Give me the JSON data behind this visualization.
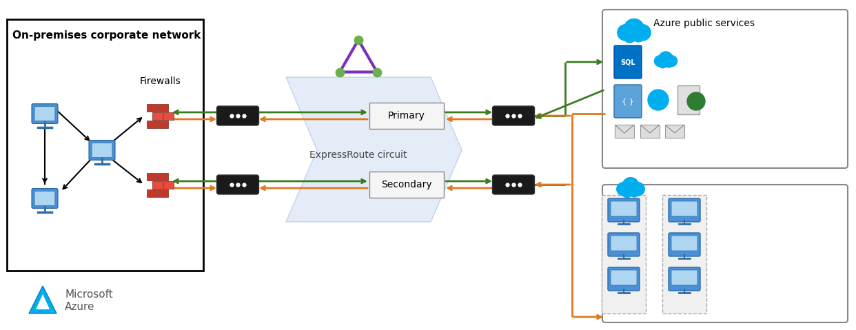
{
  "title": "On-premises corporate network",
  "bg_color": "#ffffff",
  "box_color": "#000000",
  "green_color": "#3a7d1e",
  "orange_color": "#e07820",
  "firewall_red1": "#c0392b",
  "firewall_red2": "#e74c3c",
  "firewall_edge": "#7b241c",
  "primary_label": "Primary",
  "secondary_label": "Secondary",
  "expressroute_label": "ExpressRoute circuit",
  "azure_public_label": "Azure public services",
  "firewalls_label": "Firewalls",
  "computer_blue": "#4a90d9",
  "computer_dark": "#2e6da4",
  "computer_screen": "#aed6f1",
  "cloud_blue": "#00adef",
  "router_fill": "#1a1a1a",
  "router_edge": "#333333",
  "chevron_fill": "#dce8f5",
  "chevron_edge": "#b0c8e8",
  "box_fill": "#ffffff",
  "box_edge": "#000000",
  "prim_sec_fill": "#f5f5f5",
  "prim_sec_edge": "#888888",
  "az_pub_fill": "#ffffff",
  "az_pub_edge": "#888888",
  "vnet_fill": "#ffffff",
  "vnet_edge": "#888888",
  "vm_color": "#4a90d9",
  "vm_dark": "#2e6da4",
  "vm_screen": "#aed6f1",
  "triangle_purple": "#7b2fbe",
  "triangle_green": "#6ab04c",
  "az_logo_blue": "#00adef",
  "az_logo_dark": "#0080c0",
  "ms_text_color": "#555555",
  "sql_blue": "#0072c6",
  "sql_dark": "#0050a0",
  "json_blue": "#5ba3d9",
  "json_dark": "#2e6da4",
  "globe_blue": "#00adef",
  "spool_green": "#2e7d32",
  "icon_gray": "#e0e0e0",
  "icon_gray_edge": "#999999",
  "envelope_gray": "#dddddd",
  "group_rect_edge": "#aaaaaa"
}
